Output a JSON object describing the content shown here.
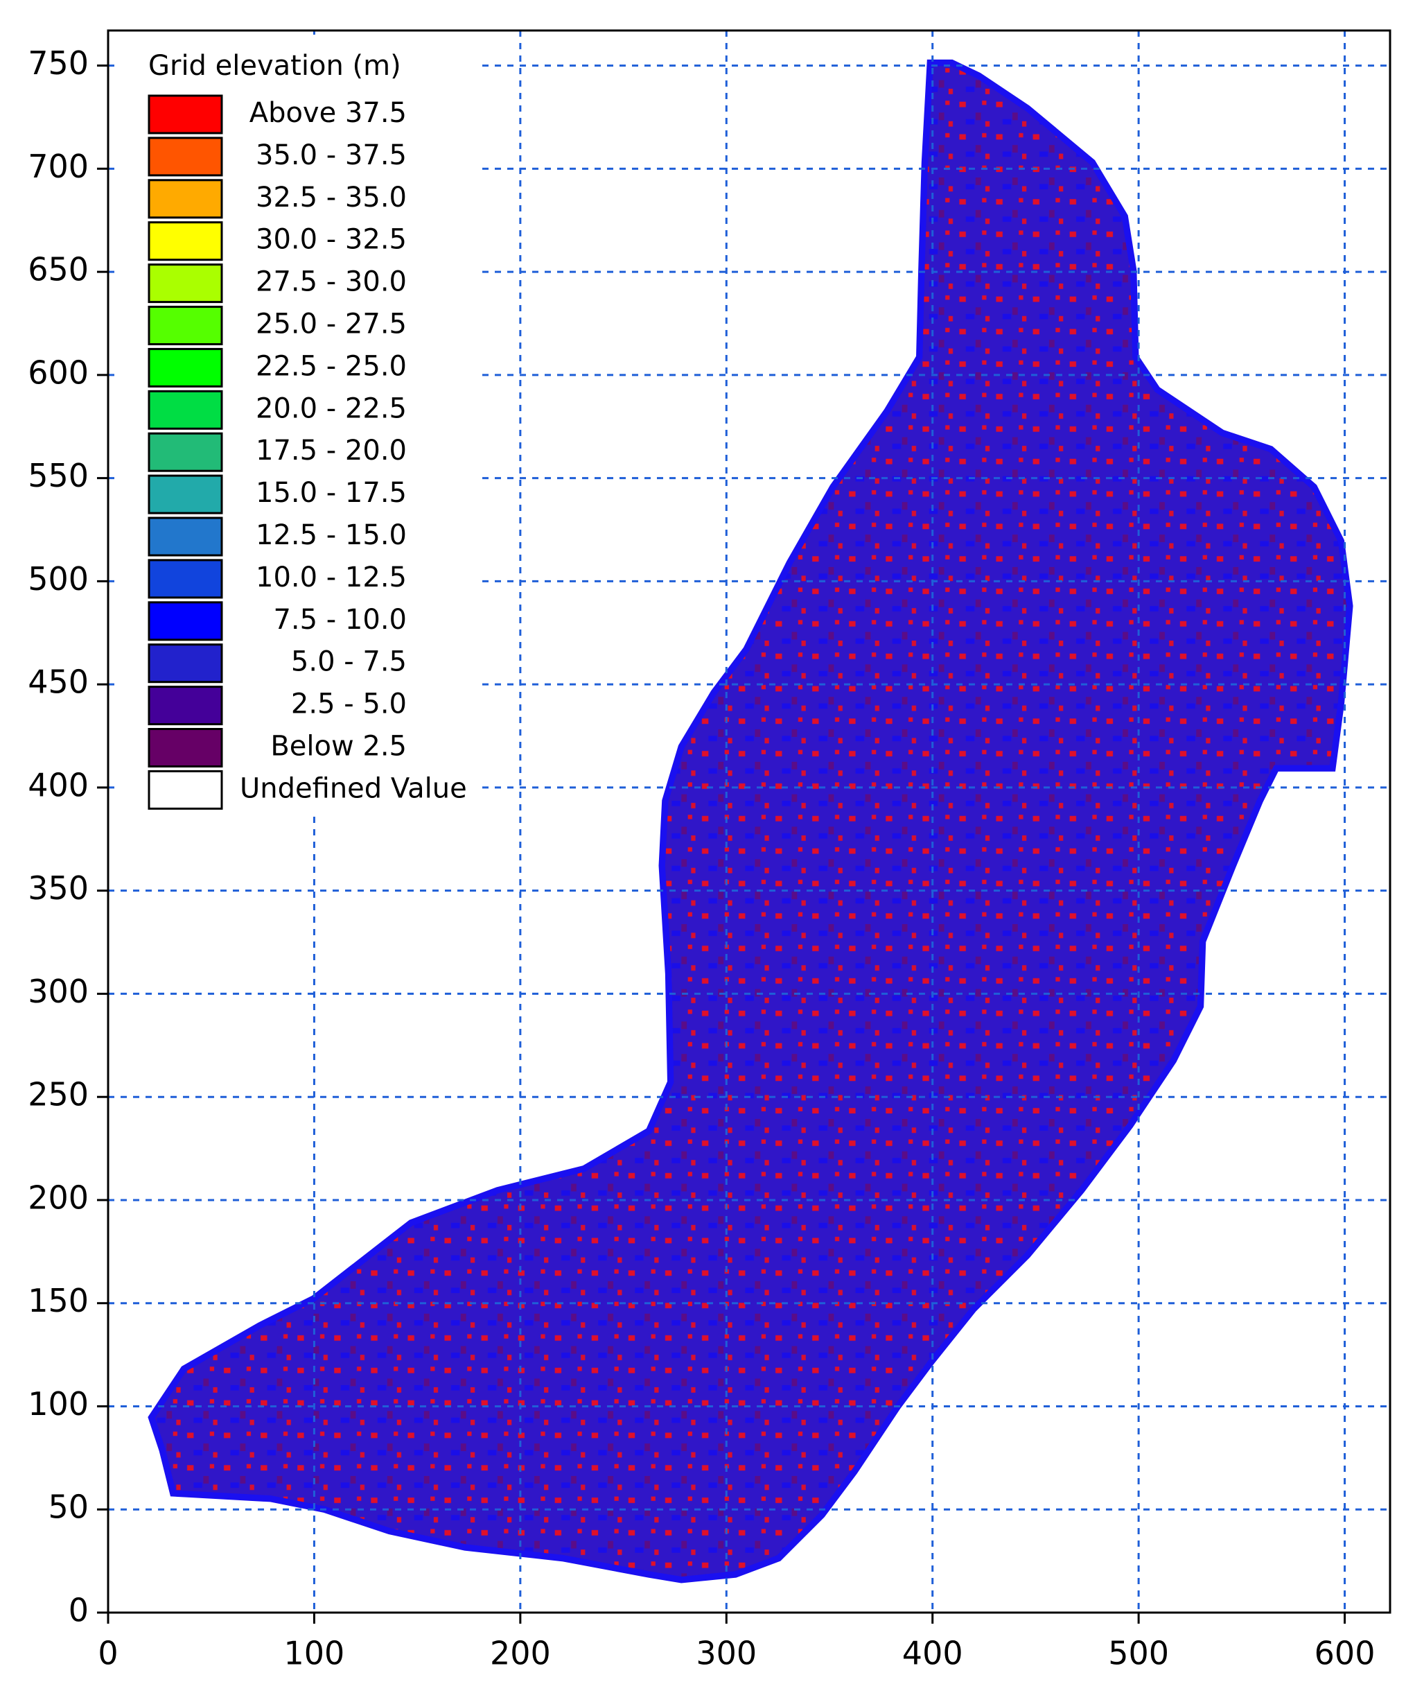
{
  "chart_data": {
    "type": "contour-map",
    "legend_title": "Grid elevation (m)",
    "legend": [
      {
        "label": "Above 37.5",
        "color": "#ff0000"
      },
      {
        "label": "35.0 - 37.5",
        "color": "#ff5500"
      },
      {
        "label": "32.5 - 35.0",
        "color": "#ffaa00"
      },
      {
        "label": "30.0 - 32.5",
        "color": "#ffff00"
      },
      {
        "label": "27.5 - 30.0",
        "color": "#aaff00"
      },
      {
        "label": "25.0 - 27.5",
        "color": "#55ff00"
      },
      {
        "label": "22.5 - 25.0",
        "color": "#00ff00"
      },
      {
        "label": "20.0 - 22.5",
        "color": "#00dd44"
      },
      {
        "label": "17.5 - 20.0",
        "color": "#22bb77"
      },
      {
        "label": "15.0 - 17.5",
        "color": "#22aaaa"
      },
      {
        "label": "12.5 - 15.0",
        "color": "#2277cc"
      },
      {
        "label": "10.0 - 12.5",
        "color": "#1144dd"
      },
      {
        "label": "7.5 - 10.0",
        "color": "#0000ff"
      },
      {
        "label": "5.0 - 7.5",
        "color": "#2222cc"
      },
      {
        "label": "2.5 - 5.0",
        "color": "#440099"
      },
      {
        "label": "Below 2.5",
        "color": "#660066"
      },
      {
        "label": "Undefined Value",
        "color": "#ffffff"
      }
    ],
    "xlim": [
      0,
      622
    ],
    "ylim": [
      0,
      767
    ],
    "xticks": [
      0,
      100,
      200,
      300,
      400,
      500,
      600
    ],
    "yticks": [
      0,
      50,
      100,
      150,
      200,
      250,
      300,
      350,
      400,
      450,
      500,
      550,
      600,
      650,
      700,
      750
    ],
    "grid": true,
    "grid_color": "#1f5fd8"
  }
}
